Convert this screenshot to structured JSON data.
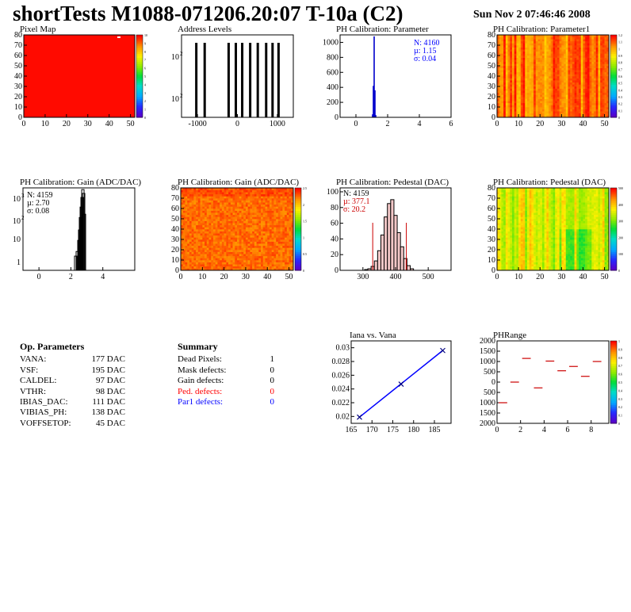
{
  "header": {
    "title": "shortTests M1088-071206.20:07 T-10a (C2)",
    "date": "Sun Nov  2 07:46:46 2008"
  },
  "plots": {
    "pixel_map": {
      "title": "Pixel Map"
    },
    "address_levels": {
      "title": "Address Levels"
    },
    "ph_param": {
      "title": "PH Calibration: Parameter",
      "stats": [
        "N: 4160",
        "µ: 1.15",
        "σ: 0.04"
      ]
    },
    "ph_param1": {
      "title": "PH Calibration: Parameter1"
    },
    "gain_hist": {
      "title": "PH Calibration: Gain (ADC/DAC)",
      "stats": [
        "N: 4159",
        "µ: 2.70",
        "σ: 0.08"
      ]
    },
    "gain_map": {
      "title": "PH Calibration: Gain (ADC/DAC)"
    },
    "ped_hist": {
      "title": "PH Calibration: Pedestal (DAC)",
      "stats": [
        "N: 4159",
        "µ: 377.1",
        "σ: 20.2"
      ]
    },
    "ped_map": {
      "title": "PH Calibration: Pedestal (DAC)"
    },
    "iana": {
      "title": "Iana vs. Vana"
    },
    "phrange": {
      "title": "PHRange"
    }
  },
  "op_params": {
    "title": "Op. Parameters",
    "rows": [
      {
        "k": "VANA:",
        "v": "177 DAC"
      },
      {
        "k": "VSF:",
        "v": "195 DAC"
      },
      {
        "k": "CALDEL:",
        "v": "97 DAC"
      },
      {
        "k": "VTHR:",
        "v": "98 DAC"
      },
      {
        "k": "IBIAS_DAC:",
        "v": "111 DAC"
      },
      {
        "k": "VIBIAS_PH:",
        "v": "138 DAC"
      },
      {
        "k": "VOFFSETOP:",
        "v": "45 DAC"
      }
    ]
  },
  "summary": {
    "title": "Summary",
    "rows": [
      {
        "k": "Dead Pixels:",
        "v": "1",
        "color": "#000000"
      },
      {
        "k": "Mask defects:",
        "v": "0",
        "color": "#000000"
      },
      {
        "k": "Gain defects:",
        "v": "0",
        "color": "#000000"
      },
      {
        "k": "Ped. defects:",
        "v": "0",
        "color": "#ff0000"
      },
      {
        "k": "Par1 defects:",
        "v": "0",
        "color": "#0000ff"
      }
    ]
  },
  "chart_data": [
    {
      "id": "pixel_map",
      "type": "heatmap",
      "title": "Pixel Map",
      "xlim": [
        0,
        52
      ],
      "ylim": [
        0,
        80
      ],
      "x_ticks": [
        0,
        10,
        20,
        30,
        40,
        50
      ],
      "y_ticks": [
        0,
        10,
        20,
        30,
        40,
        50,
        60,
        70,
        80
      ],
      "z_ticks": [
        0,
        1,
        2,
        3,
        4,
        5,
        6,
        7,
        8,
        9,
        10
      ],
      "fill_value": 10,
      "notes": "uniform red, one dead pixel"
    },
    {
      "id": "address_levels",
      "type": "bar",
      "title": "Address Levels",
      "log_y": true,
      "xlim": [
        -1400,
        1400
      ],
      "x_ticks": [
        -1000,
        0,
        1000
      ],
      "peaks_x": [
        -1030,
        -820,
        -220,
        -40,
        120,
        320,
        510,
        720,
        880,
        1030
      ]
    },
    {
      "id": "ph_param",
      "type": "bar",
      "title": "PH Calibration: Parameter",
      "xlim": [
        -1,
        6
      ],
      "ylim": [
        0,
        1100
      ],
      "x_ticks": [
        0,
        2,
        4,
        6
      ],
      "y_ticks": [
        0,
        200,
        400,
        600,
        800,
        1000
      ],
      "bins_x": [
        1.05,
        1.1,
        1.15,
        1.2,
        1.25
      ],
      "bins_y": [
        40,
        420,
        1080,
        360,
        30
      ],
      "color": "#0000cc"
    },
    {
      "id": "ph_param1",
      "type": "heatmap",
      "title": "PH Calibration: Parameter1",
      "xlim": [
        0,
        52
      ],
      "ylim": [
        0,
        80
      ],
      "x_ticks": [
        0,
        10,
        20,
        30,
        40,
        50
      ],
      "y_ticks": [
        0,
        10,
        20,
        30,
        40,
        50,
        60,
        70,
        80
      ],
      "z_ticks": [
        0,
        0.1,
        0.2,
        0.3,
        0.4,
        0.5,
        0.6,
        0.7,
        0.8,
        0.9,
        1,
        1.1,
        1.2
      ]
    },
    {
      "id": "gain_hist",
      "type": "bar",
      "title": "PH Calibration: Gain (ADC/DAC)",
      "log_y": true,
      "xlim": [
        -1,
        6
      ],
      "x_ticks": [
        0,
        2,
        4
      ],
      "y_tick_labels": [
        "1",
        "10",
        "10^2",
        "10^3"
      ],
      "bins_x": [
        2.3,
        2.4,
        2.5,
        2.55,
        2.6,
        2.65,
        2.7,
        2.75,
        2.8,
        2.85
      ],
      "bins_y": [
        2,
        3,
        8,
        20,
        60,
        150,
        350,
        700,
        500,
        80
      ]
    },
    {
      "id": "gain_map",
      "type": "heatmap",
      "title": "PH Calibration: Gain (ADC/DAC)",
      "xlim": [
        0,
        52
      ],
      "ylim": [
        0,
        80
      ],
      "x_ticks": [
        0,
        10,
        20,
        30,
        40,
        50
      ],
      "y_ticks": [
        0,
        10,
        20,
        30,
        40,
        50,
        60,
        70,
        80
      ],
      "z_ticks": [
        0,
        0.5,
        1,
        1.5,
        2,
        2.5
      ]
    },
    {
      "id": "ped_hist",
      "type": "bar",
      "title": "PH Calibration: Pedestal (DAC)",
      "xlim": [
        230,
        570
      ],
      "ylim": [
        0,
        105
      ],
      "x_ticks": [
        300,
        400,
        500
      ],
      "y_ticks": [
        0,
        20,
        40,
        60,
        80,
        100
      ],
      "bins_x": [
        310,
        320,
        330,
        340,
        350,
        360,
        370,
        380,
        390,
        400,
        410,
        420,
        430,
        440,
        450
      ],
      "bins_y": [
        1,
        2,
        5,
        12,
        25,
        45,
        68,
        85,
        90,
        70,
        48,
        30,
        15,
        6,
        2
      ],
      "cut_lines_x": [
        330,
        433
      ],
      "color": "#cc0000"
    },
    {
      "id": "ped_map",
      "type": "heatmap",
      "title": "PH Calibration: Pedestal (DAC)",
      "xlim": [
        0,
        52
      ],
      "ylim": [
        0,
        80
      ],
      "x_ticks": [
        0,
        10,
        20,
        30,
        40,
        50
      ],
      "y_ticks": [
        0,
        10,
        20,
        30,
        40,
        50,
        60,
        70,
        80
      ],
      "z_ticks": [
        0,
        100,
        200,
        300,
        400,
        500
      ]
    },
    {
      "id": "iana",
      "type": "scatter",
      "title": "Iana vs. Vana",
      "xlim": [
        165,
        189
      ],
      "ylim": [
        0.019,
        0.031
      ],
      "x_ticks": [
        165,
        170,
        175,
        180,
        185
      ],
      "y_ticks": [
        0.02,
        0.022,
        0.024,
        0.026,
        0.028,
        0.03
      ],
      "x": [
        167,
        177,
        187
      ],
      "y": [
        0.0199,
        0.0247,
        0.0296
      ],
      "color": "#000080"
    },
    {
      "id": "phrange",
      "type": "scatter",
      "title": "PHRange",
      "xlim": [
        0,
        9.5
      ],
      "ylim": [
        -2000,
        2000
      ],
      "x_ticks": [
        0,
        2,
        4,
        6,
        8
      ],
      "y_ticks": [
        -2000,
        -1500,
        -1000,
        -500,
        0,
        500,
        1000,
        1500,
        2000
      ],
      "y_tick_labels": [
        "2000",
        "1500",
        "1000",
        "500",
        "0",
        "500",
        "1000",
        "1500",
        "2000"
      ],
      "x": [
        0.5,
        1.5,
        2.5,
        3.5,
        4.5,
        5.5,
        6.5,
        7.5,
        8.5
      ],
      "y": [
        -1000,
        0,
        1150,
        -280,
        1020,
        550,
        760,
        280,
        1000
      ],
      "color": "#cc0000"
    }
  ]
}
